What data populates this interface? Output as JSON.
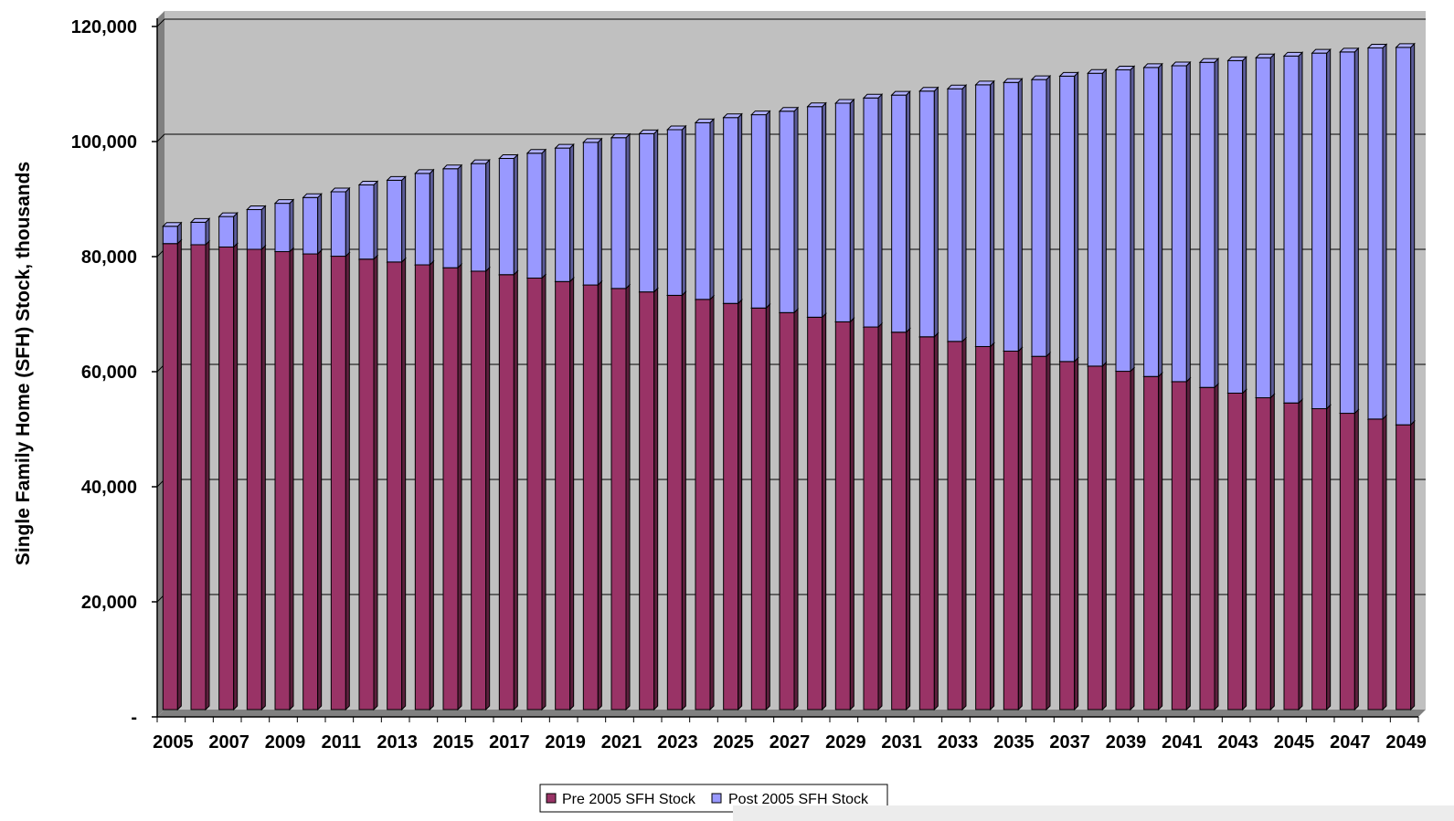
{
  "chart_data": {
    "type": "bar",
    "stacked": true,
    "three_d": true,
    "title": "",
    "xlabel": "",
    "ylabel": "Single Family Home (SFH) Stock, thousands",
    "ylim": [
      0,
      120000
    ],
    "yticks": [
      0,
      20000,
      40000,
      60000,
      80000,
      100000,
      120000
    ],
    "ytick_labels": [
      "-",
      "20,000",
      "40,000",
      "60,000",
      "80,000",
      "100,000",
      "120,000"
    ],
    "grid": true,
    "legend_position": "bottom",
    "colors": {
      "pre": "#993366",
      "post": "#9999ff",
      "plot_background": "#c0c0c0"
    },
    "categories": [
      "2005",
      "2006",
      "2007",
      "2008",
      "2009",
      "2010",
      "2011",
      "2012",
      "2013",
      "2014",
      "2015",
      "2016",
      "2017",
      "2018",
      "2019",
      "2020",
      "2021",
      "2022",
      "2023",
      "2024",
      "2025",
      "2026",
      "2027",
      "2028",
      "2029",
      "2030",
      "2031",
      "2032",
      "2033",
      "2034",
      "2035",
      "2036",
      "2037",
      "2038",
      "2039",
      "2040",
      "2041",
      "2042",
      "2043",
      "2044",
      "2045",
      "2046",
      "2047",
      "2048",
      "2049"
    ],
    "x_tick_labels": [
      "2005",
      "2007",
      "2009",
      "2011",
      "2013",
      "2015",
      "2017",
      "2019",
      "2021",
      "2023",
      "2025",
      "2027",
      "2029",
      "2031",
      "2033",
      "2035",
      "2037",
      "2039",
      "2041",
      "2043",
      "2045",
      "2047",
      "2049"
    ],
    "series": [
      {
        "name": "Pre 2005 SFH Stock",
        "values": [
          81000,
          80800,
          80400,
          80000,
          79600,
          79200,
          78800,
          78300,
          77800,
          77300,
          76800,
          76200,
          75600,
          75000,
          74400,
          73800,
          73200,
          72600,
          72000,
          71300,
          70600,
          69800,
          69000,
          68200,
          67400,
          66500,
          65600,
          64800,
          64000,
          63100,
          62300,
          61400,
          60500,
          59700,
          58800,
          57900,
          57000,
          56000,
          55000,
          54200,
          53300,
          52300,
          51500,
          50500,
          49500
        ]
      },
      {
        "name": "Post 2005 SFH Stock",
        "values": [
          3000,
          3900,
          5300,
          6900,
          8400,
          9800,
          11200,
          12900,
          14200,
          15900,
          17200,
          18700,
          20200,
          21700,
          23200,
          24800,
          26200,
          27500,
          28800,
          30700,
          32300,
          33600,
          35000,
          36600,
          38000,
          39800,
          41200,
          42700,
          43900,
          45500,
          46700,
          48100,
          49600,
          50900,
          52400,
          53700,
          54900,
          56500,
          57800,
          59100,
          60300,
          61800,
          62800,
          64500,
          65600
        ]
      }
    ]
  }
}
